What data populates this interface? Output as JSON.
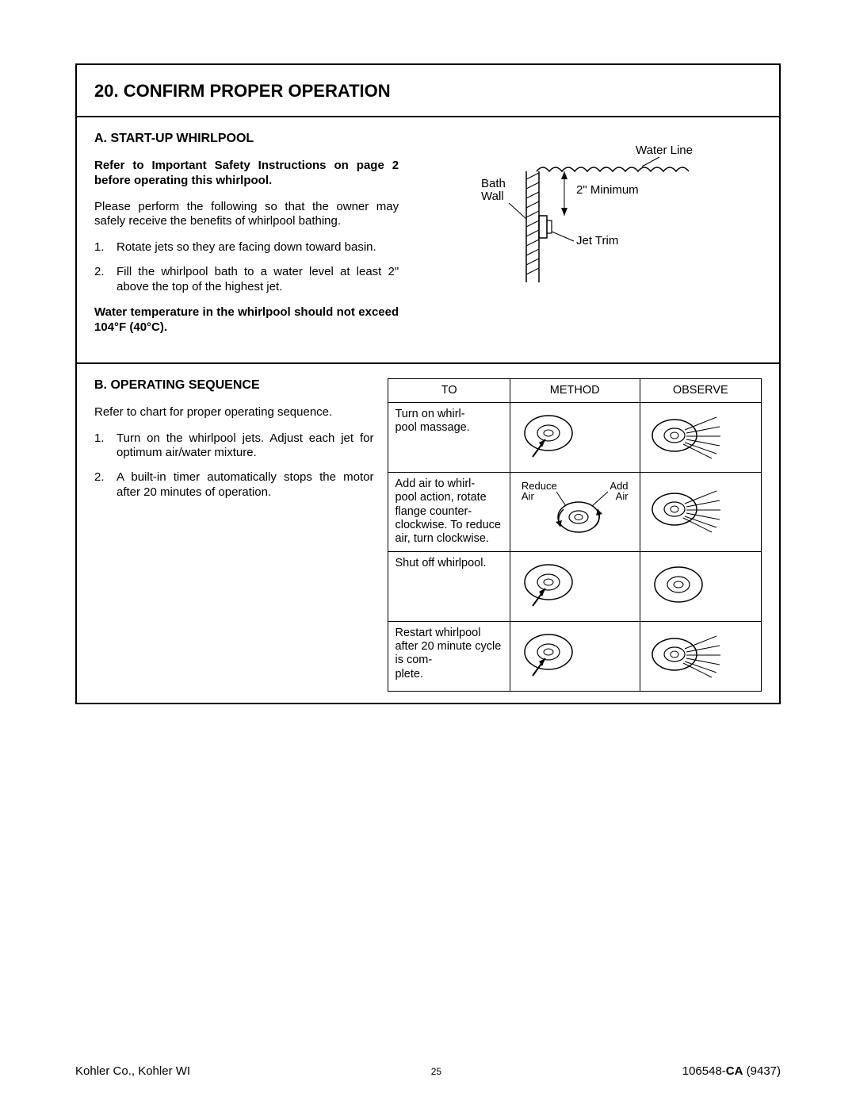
{
  "title": "20.  CONFIRM PROPER OPERATION",
  "sectionA": {
    "heading": "A. START-UP WHIRLPOOL",
    "bold1": "Refer to Important Safety Instructions on page 2 before operating this whirlpool.",
    "para1": "Please perform the following so that the owner may safely receive the benefits of whirlpool bathing.",
    "li1": "Rotate jets so they are facing down toward basin.",
    "li2": "Fill the whirlpool bath to a water level at least 2\" above the top of the highest jet.",
    "bold2": "Water temperature in the whirlpool should not exceed 104°F (40°C).",
    "diagram": {
      "waterLine": "Water Line",
      "bathWall": "Bath\nWall",
      "minimum": "2\" Minimum",
      "jetTrim": "Jet Trim"
    }
  },
  "sectionB": {
    "heading": "B. OPERATING SEQUENCE",
    "para1": "Refer to chart for proper operating sequence.",
    "li1": "Turn on the whirlpool jets. Adjust each jet for optimum air/water mixture.",
    "li2": "A built-in timer automatically stops the motor after 20 minutes of operation.",
    "table": {
      "h1": "TO",
      "h2": "METHOD",
      "h3": "OBSERVE",
      "r1": "Turn on whirl-\npool massage.",
      "r2": "Add air to whirl-\npool action, rotate flange counter-\nclockwise. To reduce air, turn clockwise.",
      "r2_reduce": "Reduce\nAir",
      "r2_add": "Add\nAir",
      "r3": "Shut off whirlpool.",
      "r4": "Restart whirlpool after 20 minute cycle is com-\nplete."
    }
  },
  "footer": {
    "left": "Kohler Co., Kohler WI",
    "page": "25",
    "right_pre": "106548-",
    "right_bold": "CA",
    "right_post": " (9437)"
  },
  "colors": {
    "stroke": "#000000",
    "bg": "#ffffff"
  }
}
